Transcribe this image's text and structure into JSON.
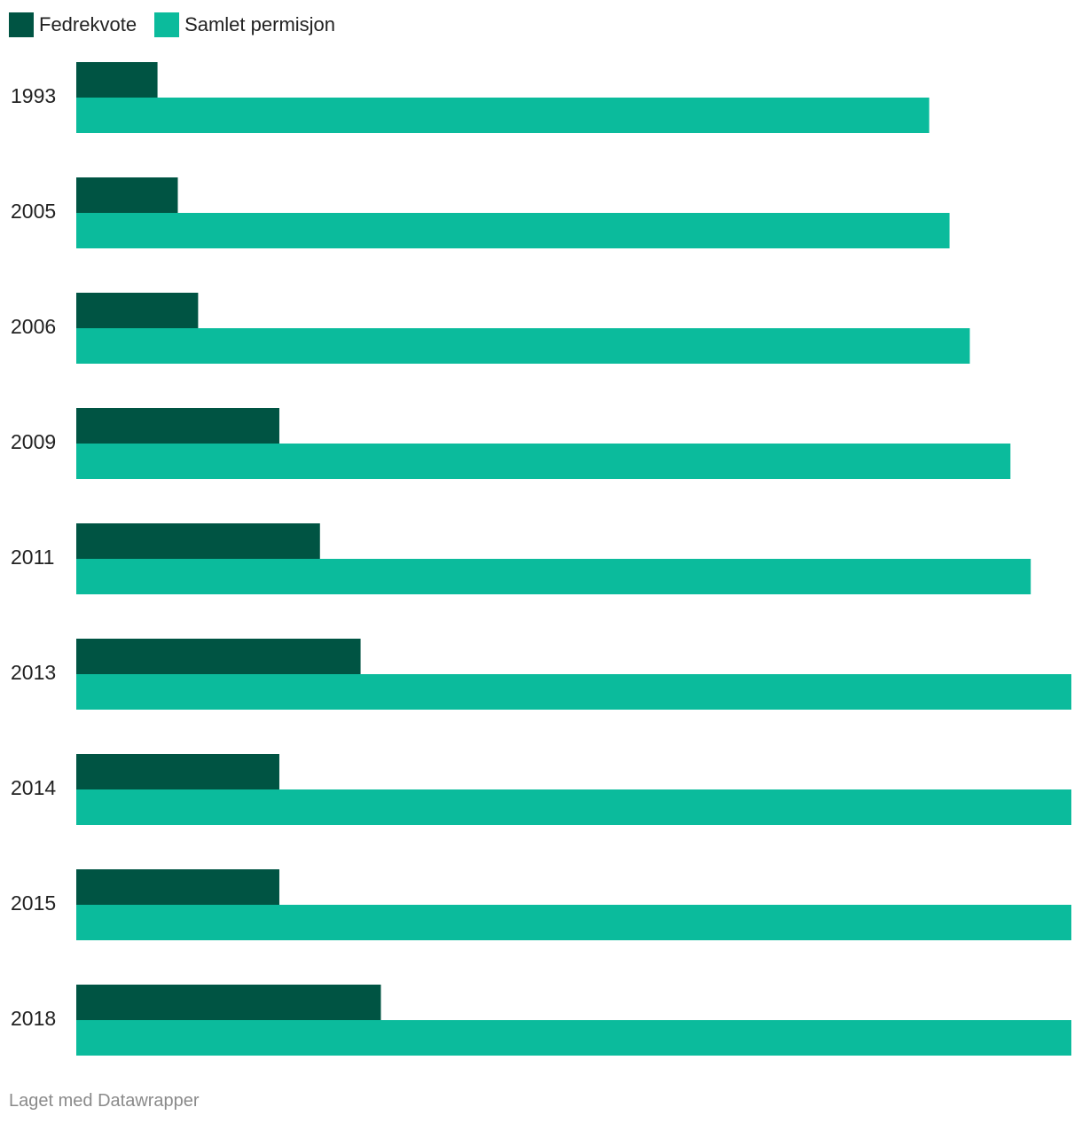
{
  "legend": [
    {
      "label": "Fedrekvote",
      "color": "#005443"
    },
    {
      "label": "Samlet permisjon",
      "color": "#0bbb9c"
    }
  ],
  "footer": {
    "credit": "Laget med Datawrapper"
  },
  "chart_data": {
    "type": "bar",
    "orientation": "horizontal",
    "categories": [
      "1993",
      "2005",
      "2006",
      "2009",
      "2011",
      "2013",
      "2014",
      "2015",
      "2018"
    ],
    "series": [
      {
        "name": "Fedrekvote",
        "color": "#005443",
        "values": [
          4,
          5,
          6,
          10,
          12,
          14,
          10,
          10,
          15
        ]
      },
      {
        "name": "Samlet permisjon",
        "color": "#0bbb9c",
        "values": [
          42,
          43,
          44,
          46,
          47,
          49,
          49,
          49,
          49
        ]
      }
    ],
    "xlim": [
      0,
      49
    ],
    "grid": false,
    "legend_position": "top-left"
  }
}
